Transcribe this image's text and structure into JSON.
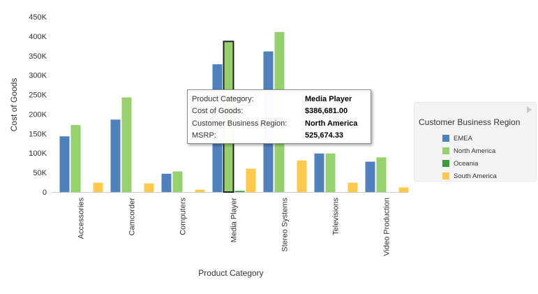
{
  "chart_data": {
    "type": "bar",
    "xlabel": "Product Category",
    "ylabel": "Cost of Goods",
    "ylim": [
      0,
      450000
    ],
    "yticks": [
      0,
      50000,
      100000,
      150000,
      200000,
      250000,
      300000,
      350000,
      400000,
      450000
    ],
    "ytick_labels": [
      "0",
      "50K",
      "100K",
      "150K",
      "200K",
      "250K",
      "300K",
      "350K",
      "400K",
      "450K"
    ],
    "categories": [
      "Accessories",
      "Camcorder",
      "Computers",
      "Media Player",
      "Stereo Systems",
      "Televisions",
      "Video Production"
    ],
    "series": [
      {
        "name": "EMEA",
        "color": "#4f81bd",
        "values": [
          143000,
          186000,
          47000,
          328000,
          361000,
          99000,
          78000
        ]
      },
      {
        "name": "North America",
        "color": "#97d16f",
        "values": [
          172000,
          243000,
          53000,
          386681,
          411000,
          99000,
          89000
        ]
      },
      {
        "name": "Oceania",
        "color": "#3e9a3e",
        "values": [
          0,
          0,
          0,
          3000,
          0,
          0,
          0
        ]
      },
      {
        "name": "South America",
        "color": "#ffc94d",
        "values": [
          24000,
          22000,
          6000,
          60000,
          81000,
          24000,
          12000
        ]
      }
    ],
    "highlight": {
      "category": "Media Player",
      "series": "North America"
    },
    "grid": false,
    "legend_placement": "right"
  },
  "legend": {
    "title": "Customer Business Region",
    "items": [
      {
        "label": "EMEA",
        "color": "#4f81bd"
      },
      {
        "label": "North America",
        "color": "#97d16f"
      },
      {
        "label": "Oceania",
        "color": "#3e9a3e"
      },
      {
        "label": "South America",
        "color": "#ffc94d"
      }
    ]
  },
  "tooltip": {
    "rows": [
      {
        "key": "Product Category:",
        "value": "Media Player"
      },
      {
        "key": "Cost of Goods:",
        "value": "$386,681.00"
      },
      {
        "key": "Customer Business Region:",
        "value": "North America"
      },
      {
        "key": "MSRP:",
        "value": "525,674.33"
      }
    ]
  }
}
